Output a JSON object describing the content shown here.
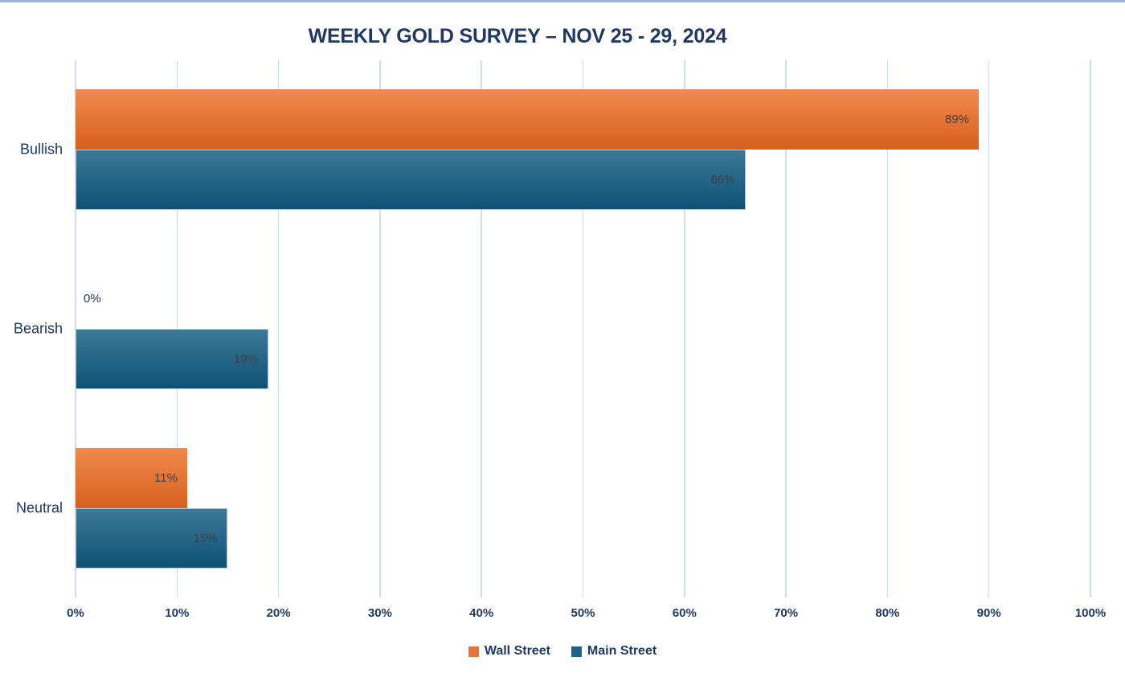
{
  "page": {
    "background": "#FFFFFF",
    "top_border_color": "#9FB4CC"
  },
  "chart_data": {
    "type": "bar",
    "orientation": "horizontal",
    "title": "WEEKLY GOLD SURVEY – NOV 25 - 29, 2024",
    "title_color": "#1F3864",
    "categories": [
      "Bullish",
      "Bearish",
      "Neutral"
    ],
    "series": [
      {
        "name": "Wall Street",
        "values": [
          89,
          0,
          11
        ],
        "legend_color": "#E9713A",
        "gradient_top": "#F08A4E",
        "gradient_bottom": "#D7601C"
      },
      {
        "name": "Main Street",
        "values": [
          66,
          19,
          15
        ],
        "legend_color": "#1F6287",
        "gradient_top": "#3E7897",
        "gradient_bottom": "#0D5276",
        "border_color": "#A9C8DC"
      }
    ],
    "value_suffix": "%",
    "data_labels": [
      "89%",
      "0%",
      "11%",
      "66%",
      "19%",
      "15%"
    ],
    "data_label_color_inside": "#3F3F3F",
    "data_label_color_zero": "#1F3864",
    "category_label_color": "#1F3864",
    "x_axis": {
      "min": 0,
      "max": 100,
      "tick_step": 10,
      "tick_labels": [
        "0%",
        "10%",
        "20%",
        "30%",
        "40%",
        "50%",
        "60%",
        "70%",
        "80%",
        "90%",
        "100%"
      ],
      "label_color": "#1F3864"
    },
    "grid": {
      "show_vertical": true,
      "color": "#CFDCEE"
    },
    "legend": {
      "position": "bottom",
      "labels": [
        "Wall Street",
        "Main Street"
      ]
    }
  }
}
